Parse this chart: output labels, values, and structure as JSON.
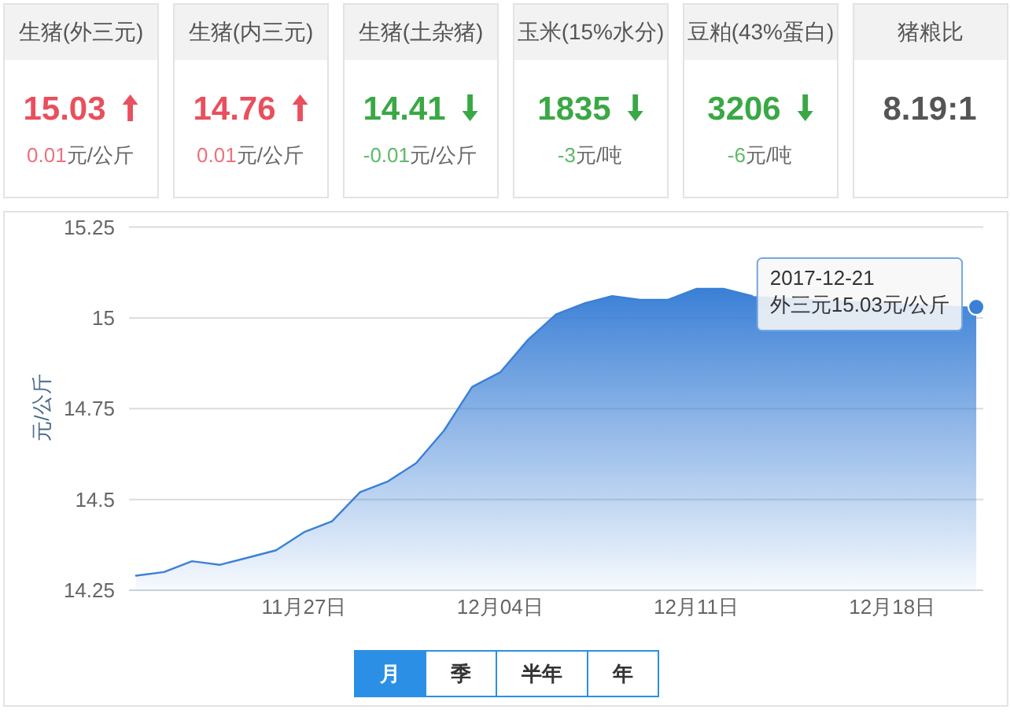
{
  "chart_data": [
    {
      "type": "other",
      "title": "生猪(外三元)",
      "subtitle": "15.03",
      "values": [
        0.01
      ],
      "data_labels": true,
      "annotations": [
        "元/公斤"
      ],
      "color": "#e94f5d"
    },
    {
      "type": "other",
      "title": "生猪(内三元)",
      "subtitle": "14.76",
      "values": [
        0.01
      ],
      "data_labels": true,
      "annotations": [
        "元/公斤"
      ],
      "color": "#e94f5d"
    },
    {
      "type": "other",
      "title": "生猪(土杂猪)",
      "subtitle": "14.41",
      "values": [
        -0.01
      ],
      "data_labels": true,
      "annotations": [
        "元/公斤"
      ],
      "color": "#3aa845"
    },
    {
      "type": "other",
      "title": "玉米(15%水分)",
      "subtitle": "1835",
      "values": [
        -3
      ],
      "data_labels": true,
      "annotations": [
        "元/吨"
      ],
      "color": "#3aa845"
    },
    {
      "type": "other",
      "title": "豆粕(43%蛋白)",
      "subtitle": "3206",
      "values": [
        -6
      ],
      "data_labels": true,
      "annotations": [
        "元/吨"
      ],
      "color": "#3aa845"
    },
    {
      "type": "other",
      "title": "猪粮比",
      "subtitle": "8.19:1",
      "color": "#555555"
    },
    {
      "type": "area",
      "ylabel": "元/公斤",
      "color": "#3b80d6",
      "grid": "y",
      "x": [
        "2017-11-21",
        "2017-11-22",
        "2017-11-23",
        "2017-11-24",
        "2017-11-25",
        "2017-11-26",
        "2017-11-27",
        "2017-11-28",
        "2017-11-29",
        "2017-11-30",
        "2017-12-01",
        "2017-12-02",
        "2017-12-03",
        "2017-12-04",
        "2017-12-05",
        "2017-12-06",
        "2017-12-07",
        "2017-12-08",
        "2017-12-09",
        "2017-12-10",
        "2017-12-11",
        "2017-12-12",
        "2017-12-13",
        "2017-12-14",
        "2017-12-15",
        "2017-12-16",
        "2017-12-17",
        "2017-12-18",
        "2017-12-19",
        "2017-12-20",
        "2017-12-21"
      ],
      "values": [
        14.29,
        14.3,
        14.33,
        14.32,
        14.34,
        14.36,
        14.41,
        14.44,
        14.52,
        14.55,
        14.6,
        14.69,
        14.81,
        14.85,
        14.94,
        15.01,
        15.04,
        15.06,
        15.05,
        15.05,
        15.08,
        15.08,
        15.06,
        null,
        null,
        null,
        null,
        null,
        null,
        null,
        15.03
      ],
      "xlim": [
        "2017-11-20T18:00",
        "2017-12-21T06:00"
      ],
      "ylim": [
        14.25,
        15.25
      ],
      "yticks": [
        14.25,
        14.5,
        14.75,
        15,
        15.25
      ],
      "xticks": [
        {
          "value": "2017-11-27",
          "label": "11月27日"
        },
        {
          "value": "2017-12-04",
          "label": "12月04日"
        },
        {
          "value": "2017-12-11",
          "label": "12月11日"
        },
        {
          "value": "2017-12-18",
          "label": "12月18日"
        }
      ],
      "annotations": [
        "2017-12-21",
        {
          "text": "外三元15.03元/公斤",
          "x": "2017-12-21",
          "y": 15.03
        }
      ]
    },
    {
      "type": "other",
      "categories": [
        "月",
        "季",
        "半年",
        "年"
      ],
      "colors": [
        "#2b8fe5",
        "#ffffff",
        "#ffffff",
        "#ffffff"
      ]
    }
  ]
}
